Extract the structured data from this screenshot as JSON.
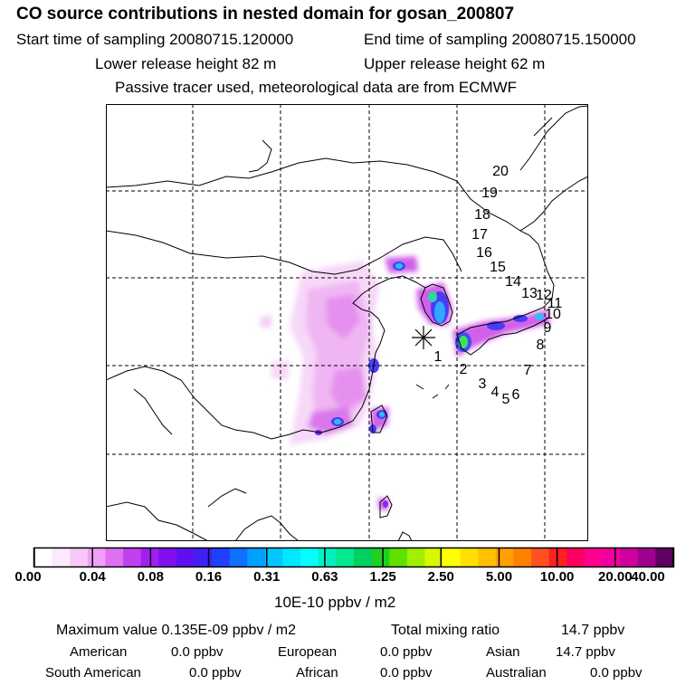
{
  "header": {
    "title": "CO  source contributions in nested domain for gosan_200807",
    "start_label": "Start time of sampling 20080715.120000",
    "end_label": "End time of sampling 20080715.150000",
    "lower_label": "Lower release height   82 m",
    "upper_label": "Upper release height   62 m",
    "note": "Passive tracer used, meteorological data are from ECMWF"
  },
  "trajectory_labels": [
    "1",
    "2",
    "3",
    "4",
    "5",
    "6",
    "7",
    "8",
    "9",
    "10",
    "11",
    "12",
    "13",
    "14",
    "15",
    "16",
    "17",
    "18",
    "19",
    "20"
  ],
  "colorbar": {
    "ticks": [
      "0.00",
      "0.04",
      "0.08",
      "0.16",
      "0.31",
      "0.63",
      "1.25",
      "2.50",
      "5.00",
      "10.00",
      "20.00",
      "40.00"
    ],
    "unit": "10E-10 ppbv / m2",
    "colors": [
      "#ffffff",
      "#fde8fd",
      "#f8c8f8",
      "#f0a0f5",
      "#dd70f0",
      "#c040f0",
      "#a020f0",
      "#8010f0",
      "#6010f0",
      "#4020f5",
      "#2040ff",
      "#1070ff",
      "#00a0ff",
      "#00c8ff",
      "#00e8ff",
      "#00ffff",
      "#00f0c0",
      "#00e890",
      "#00d060",
      "#20d020",
      "#60e000",
      "#a0f000",
      "#d8f800",
      "#ffff00",
      "#ffe000",
      "#ffc000",
      "#ffa000",
      "#ff8000",
      "#ff5020",
      "#ff2020",
      "#ff0060",
      "#ff0090",
      "#f000a0",
      "#d000a0",
      "#a00090",
      "#600060"
    ]
  },
  "stats": {
    "max_label": "Maximum value  0.135E-09 ppbv / m2",
    "total_label": "Total mixing ratio",
    "total_value": "14.7 ppbv",
    "regions": [
      {
        "name": "American",
        "value": "0.0 ppbv"
      },
      {
        "name": "European",
        "value": "0.0 ppbv"
      },
      {
        "name": "Asian",
        "value": "14.7 ppbv"
      },
      {
        "name": "South American",
        "value": "0.0 ppbv"
      },
      {
        "name": "African",
        "value": "0.0 ppbv"
      },
      {
        "name": "Australian",
        "value": "0.0 ppbv"
      }
    ]
  }
}
